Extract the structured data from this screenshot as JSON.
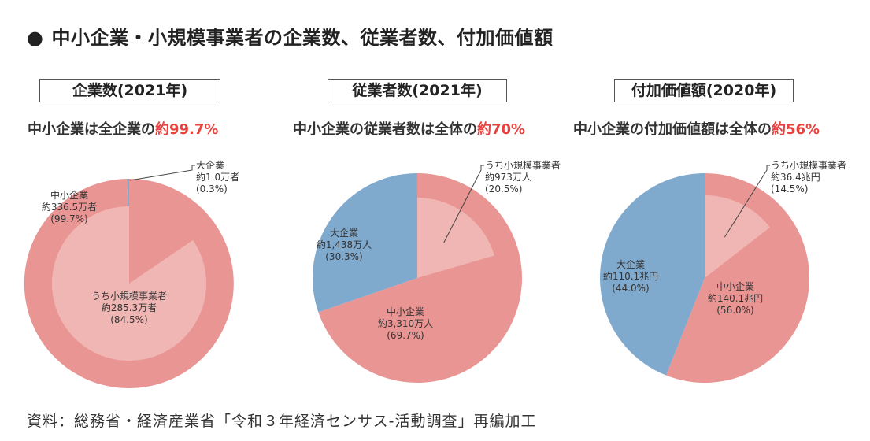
{
  "title": "中小企業・小規模事業者の企業数、従業者数、付加価値額",
  "title_bullet": "●",
  "source": "資料：総務省・経済産業省「令和３年経済センサス‐活動調査」再編加工",
  "colors": {
    "sme": "#e99593",
    "small": "#f0b6b4",
    "large": "#7fa9cd",
    "accent": "#e8413e",
    "ring": "#e99593"
  },
  "panels": [
    {
      "box_title": "企業数(2021年)",
      "headline_prefix": "中小企業は全企業の",
      "headline_accent": "約99.7%",
      "labels": {
        "large": [
          "大企業",
          "約1.0万者",
          "(0.3%)"
        ],
        "sme": [
          "中小企業",
          "約336.5万者",
          "(99.7%)"
        ],
        "small": [
          "うち小規模事業者",
          "約285.3万者",
          "(84.5%)"
        ]
      }
    },
    {
      "box_title": "従業者数(2021年)",
      "headline_prefix": "中小企業の従業者数は全体の",
      "headline_accent": "約70%",
      "labels": {
        "small": [
          "うち小規模事業者",
          "約973万人",
          "(20.5%)"
        ],
        "large": [
          "大企業",
          "約1,438万人",
          "(30.3%)"
        ],
        "sme": [
          "中小企業",
          "約3,310万人",
          "(69.7%)"
        ]
      }
    },
    {
      "box_title": "付加価値額(2020年)",
      "headline_prefix": "中小企業の付加価値額は全体の",
      "headline_accent": "約56%",
      "labels": {
        "small": [
          "うち小規模事業者",
          "約36.4兆円",
          "(14.5%)"
        ],
        "large": [
          "大企業",
          "約110.1兆円",
          "(44.0%)"
        ],
        "sme": [
          "中小企業",
          "約140.1兆円",
          "(56.0%)"
        ]
      }
    }
  ],
  "chart_data": [
    {
      "type": "pie",
      "title": "企業数(2021年)",
      "slices": [
        {
          "name": "中小企業",
          "value": 99.7
        },
        {
          "name": "大企業",
          "value": 0.3
        }
      ],
      "inner": {
        "name": "うち小規模事業者",
        "value": 84.5
      }
    },
    {
      "type": "pie",
      "title": "従業者数(2021年)",
      "slices": [
        {
          "name": "中小企業",
          "value": 69.7
        },
        {
          "name": "大企業",
          "value": 30.3
        }
      ],
      "inner": {
        "name": "うち小規模事業者",
        "value": 20.5
      }
    },
    {
      "type": "pie",
      "title": "付加価値額(2020年)",
      "slices": [
        {
          "name": "中小企業",
          "value": 56.0
        },
        {
          "name": "大企業",
          "value": 44.0
        }
      ],
      "inner": {
        "name": "うち小規模事業者",
        "value": 14.5
      }
    }
  ]
}
